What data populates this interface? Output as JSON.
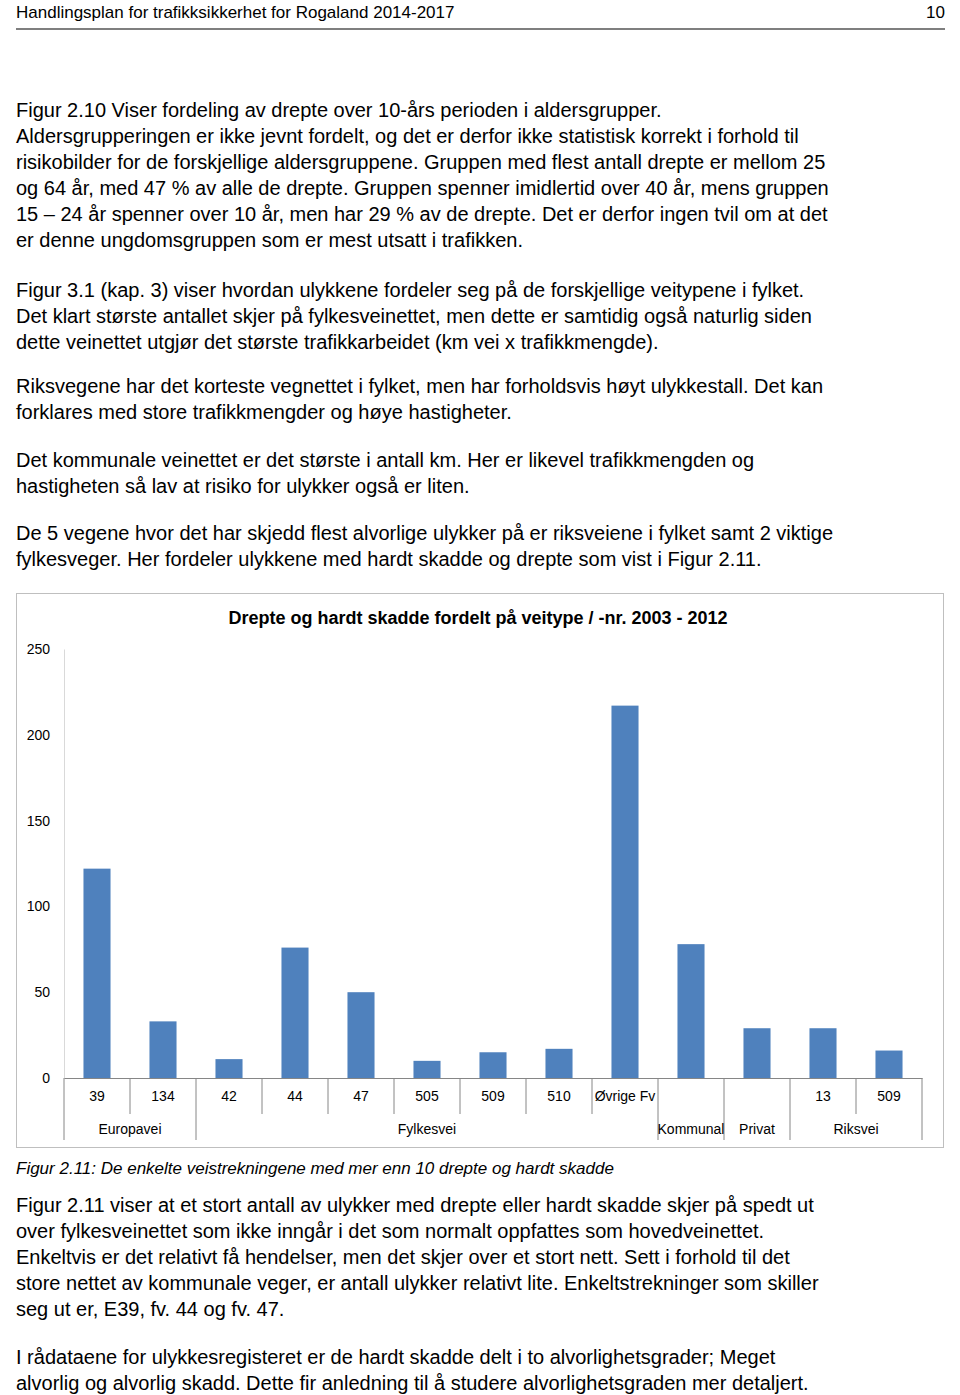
{
  "header": {
    "title": "Handlingsplan for trafikksikkerhet for Rogaland 2014-2017",
    "page": "10"
  },
  "paragraphs_before": [
    [
      "Figur 2.10 Viser fordeling av drepte over 10-års perioden i aldersgrupper.",
      "Aldersgrupperingen er ikke jevnt fordelt, og det er derfor ikke statistisk korrekt i forhold til",
      "risikobilder for de forskjellige aldersgruppene. Gruppen med flest antall drepte er mellom 25",
      "og 64 år, med 47 % av alle de drepte. Gruppen spenner imidlertid over 40 år, mens gruppen",
      "15 – 24 år spenner over 10 år, men har 29 % av de drepte. Det er derfor ingen tvil om at det",
      "er denne ungdomsgruppen som er mest utsatt i trafikken."
    ],
    [
      "Figur 3.1 (kap. 3) viser hvordan ulykkene fordeler seg på de forskjellige veitypene i fylket.",
      "Det klart største antallet skjer på fylkesveinettet, men dette er samtidig også naturlig siden",
      "dette veinettet utgjør det største trafikkarbeidet (km vei x trafikkmengde)."
    ],
    [
      "Riksvegene har det korteste vegnettet i fylket, men har forholdsvis høyt ulykkestall. Det kan",
      "forklares med store trafikkmengder og høye hastigheter."
    ],
    [
      "Det kommunale veinettet er det største i antall km. Her er likevel trafikkmengden og",
      "hastigheten så lav at risiko for ulykker også er liten."
    ],
    [
      "De 5 vegene hvor det har skjedd flest alvorlige ulykker på er riksveiene i fylket samt 2 viktige",
      "fylkesveger. Her fordeler ulykkene med hardt skadde og drepte som vist i Figur 2.11."
    ]
  ],
  "chart_data": {
    "type": "bar",
    "title": "Drepte og hardt skadde fordelt på veitype / -nr. 2003 - 2012",
    "categories": [
      "39",
      "134",
      "42",
      "44",
      "47",
      "505",
      "509",
      "510",
      "Øvrige Fv",
      null,
      null,
      "13",
      "509"
    ],
    "groups": [
      "Europavei",
      "Europavei",
      "Fylkesvei",
      "Fylkesvei",
      "Fylkesvei",
      "Fylkesvei",
      "Fylkesvei",
      "Fylkesvei",
      "Fylkesvei",
      "Kommunal",
      "Privat",
      "Riksvei",
      "Riksvei"
    ],
    "values": [
      122,
      33,
      11,
      76,
      50,
      10,
      15,
      17,
      217,
      78,
      29,
      29,
      16
    ],
    "color": "#4f81bd",
    "ylim": [
      0,
      250
    ],
    "yticks": [
      0,
      50,
      100,
      150,
      200,
      250
    ],
    "grid": false
  },
  "caption": "Figur 2.11: De enkelte veistrekningene med mer enn 10 drepte og hardt skadde",
  "paragraphs_after": [
    [
      "Figur 2.11 viser at et stort antall av ulykker med drepte eller hardt skadde skjer på spedt ut",
      "over fylkesveinettet som ikke inngår i det som normalt oppfattes som hovedveinettet.",
      "Enkeltvis er det relativt få hendelser, men det skjer over et stort nett. Sett i forhold til det",
      "store nettet av kommunale veger, er antall ulykker relativt lite. Enkeltstrekninger som skiller",
      "seg ut er, E39, fv. 44 og fv. 47."
    ],
    [
      "I rådataene for ulykkesregisteret er de hardt skadde delt i to alvorlighetsgrader; Meget",
      "alvorlig og alvorlig skadd. Dette fir anledning til å studere alvorlighetsgraden mer detaljert."
    ]
  ]
}
